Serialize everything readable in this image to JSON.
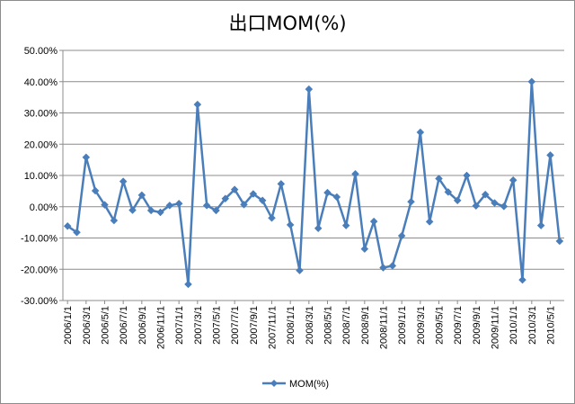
{
  "chart_data": {
    "type": "line",
    "title": "出口MOM(%)",
    "xlabel": "",
    "ylabel": "",
    "ylim": [
      -0.3,
      0.5
    ],
    "yticks": [
      -0.3,
      -0.2,
      -0.1,
      0.0,
      0.1,
      0.2,
      0.3,
      0.4,
      0.5
    ],
    "ytick_labels": [
      "-30.00%",
      "-20.00%",
      "-10.00%",
      "0.00%",
      "10.00%",
      "20.00%",
      "30.00%",
      "40.00%",
      "50.00%"
    ],
    "grid": "horizontal",
    "legend_position": "bottom",
    "x_tick_labels": [
      "2006/1/1",
      "2006/3/1",
      "2006/5/1",
      "2006/7/1",
      "2006/9/1",
      "2006/11/1",
      "2007/1/1",
      "2007/3/1",
      "2007/5/1",
      "2007/7/1",
      "2007/9/1",
      "2007/11/1",
      "2008/1/1",
      "2008/3/1",
      "2008/5/1",
      "2008/7/1",
      "2008/9/1",
      "2008/11/1",
      "2009/1/1",
      "2009/3/1",
      "2009/5/1",
      "2009/7/1",
      "2009/9/1",
      "2009/11/1",
      "2010/1/1",
      "2010/3/1",
      "2010/5/1"
    ],
    "categories": [
      "2006/1/1",
      "2006/2/1",
      "2006/3/1",
      "2006/4/1",
      "2006/5/1",
      "2006/6/1",
      "2006/7/1",
      "2006/8/1",
      "2006/9/1",
      "2006/10/1",
      "2006/11/1",
      "2006/12/1",
      "2007/1/1",
      "2007/2/1",
      "2007/3/1",
      "2007/4/1",
      "2007/5/1",
      "2007/6/1",
      "2007/7/1",
      "2007/8/1",
      "2007/9/1",
      "2007/10/1",
      "2007/11/1",
      "2007/12/1",
      "2008/1/1",
      "2008/2/1",
      "2008/3/1",
      "2008/4/1",
      "2008/5/1",
      "2008/6/1",
      "2008/7/1",
      "2008/8/1",
      "2008/9/1",
      "2008/10/1",
      "2008/11/1",
      "2008/12/1",
      "2009/1/1",
      "2009/2/1",
      "2009/3/1",
      "2009/4/1",
      "2009/5/1",
      "2009/6/1",
      "2009/7/1",
      "2009/8/1",
      "2009/9/1",
      "2009/10/1",
      "2009/11/1",
      "2009/12/1",
      "2010/1/1",
      "2010/2/1",
      "2010/3/1",
      "2010/4/1",
      "2010/5/1",
      "2010/6/1"
    ],
    "series": [
      {
        "name": "MOM(%)",
        "color": "#4a7ebb",
        "marker": "diamond",
        "values": [
          -0.062,
          -0.082,
          0.158,
          0.051,
          0.006,
          -0.044,
          0.081,
          -0.011,
          0.037,
          -0.012,
          -0.018,
          0.004,
          0.01,
          -0.248,
          0.327,
          0.004,
          -0.012,
          0.026,
          0.055,
          0.007,
          0.041,
          0.02,
          -0.036,
          0.073,
          -0.058,
          -0.204,
          0.376,
          -0.069,
          0.045,
          0.031,
          -0.06,
          0.105,
          -0.135,
          -0.047,
          -0.195,
          -0.189,
          -0.093,
          0.016,
          0.238,
          -0.048,
          0.09,
          0.047,
          0.02,
          0.1,
          0.003,
          0.039,
          0.012,
          0.001,
          0.085,
          -0.234,
          0.4,
          -0.06,
          0.165,
          -0.11
        ]
      }
    ]
  }
}
